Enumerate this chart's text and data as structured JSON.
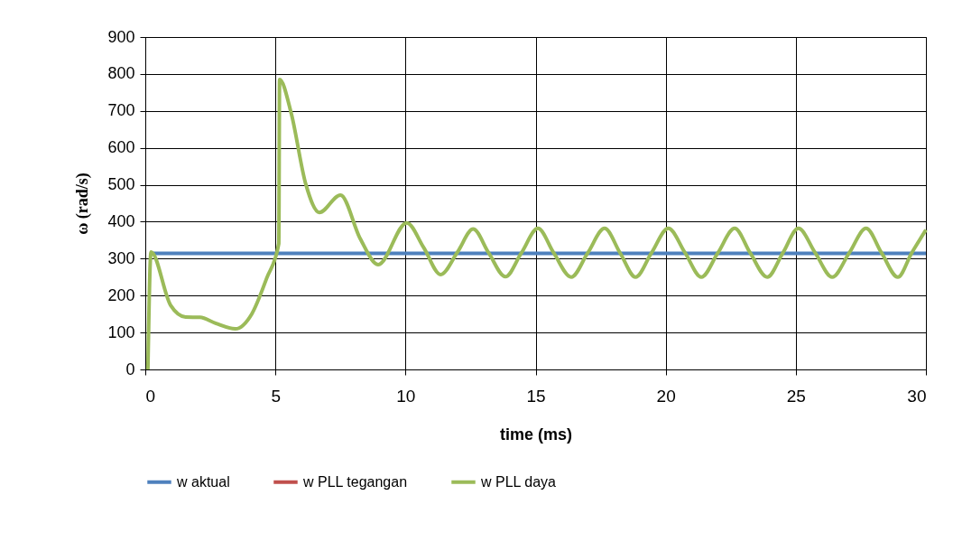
{
  "chart_data": {
    "type": "line",
    "xlabel": "time (ms)",
    "ylabel": "ω (rad/s)",
    "xlim": [
      0,
      30
    ],
    "xticks": [
      0,
      5,
      10,
      15,
      20,
      25,
      30
    ],
    "ylim": [
      0,
      900
    ],
    "yticks": [
      0,
      100,
      200,
      300,
      400,
      500,
      600,
      700,
      800,
      900
    ],
    "grid": true,
    "legend": "bottom",
    "line_style": "solid",
    "marker": "none",
    "series": [
      {
        "name": "w aktual",
        "color": "#4f81bd",
        "x": [
          0.2,
          30
        ],
        "values": [
          314,
          314
        ]
      },
      {
        "name": "w PLL tegangan",
        "color": "#c0504d"
      },
      {
        "name": "w PLL daya",
        "color": "#9bbb59",
        "x": [
          0.1,
          0.22,
          0.97,
          1.55,
          2.1,
          2.7,
          3.46,
          4.09,
          4.67,
          5.13,
          5.16,
          5.6,
          6.17,
          6.69,
          7.5,
          8.26,
          8.95,
          10.05,
          10.7,
          11.35,
          12.0,
          12.6,
          13.2,
          13.84,
          14.45,
          15.09,
          15.7,
          16.37,
          17.0,
          17.65,
          18.25,
          18.84,
          19.45,
          20.1,
          20.75,
          21.37,
          22.0,
          22.65,
          23.25,
          23.9,
          24.5,
          25.1,
          25.75,
          26.4,
          27.05,
          27.7,
          28.3,
          28.92,
          29.45,
          30
        ],
        "values": [
          0,
          318,
          174,
          142,
          141,
          125,
          110,
          150,
          248,
          341,
          785,
          696,
          501,
          425,
          472,
          354,
          284,
          397,
          330,
          257,
          318,
          380,
          315,
          251,
          315,
          382,
          315,
          250,
          315,
          382,
          315,
          250,
          315,
          382,
          315,
          250,
          315,
          382,
          315,
          250,
          315,
          382,
          315,
          250,
          315,
          382,
          315,
          250,
          315,
          378
        ]
      }
    ]
  }
}
